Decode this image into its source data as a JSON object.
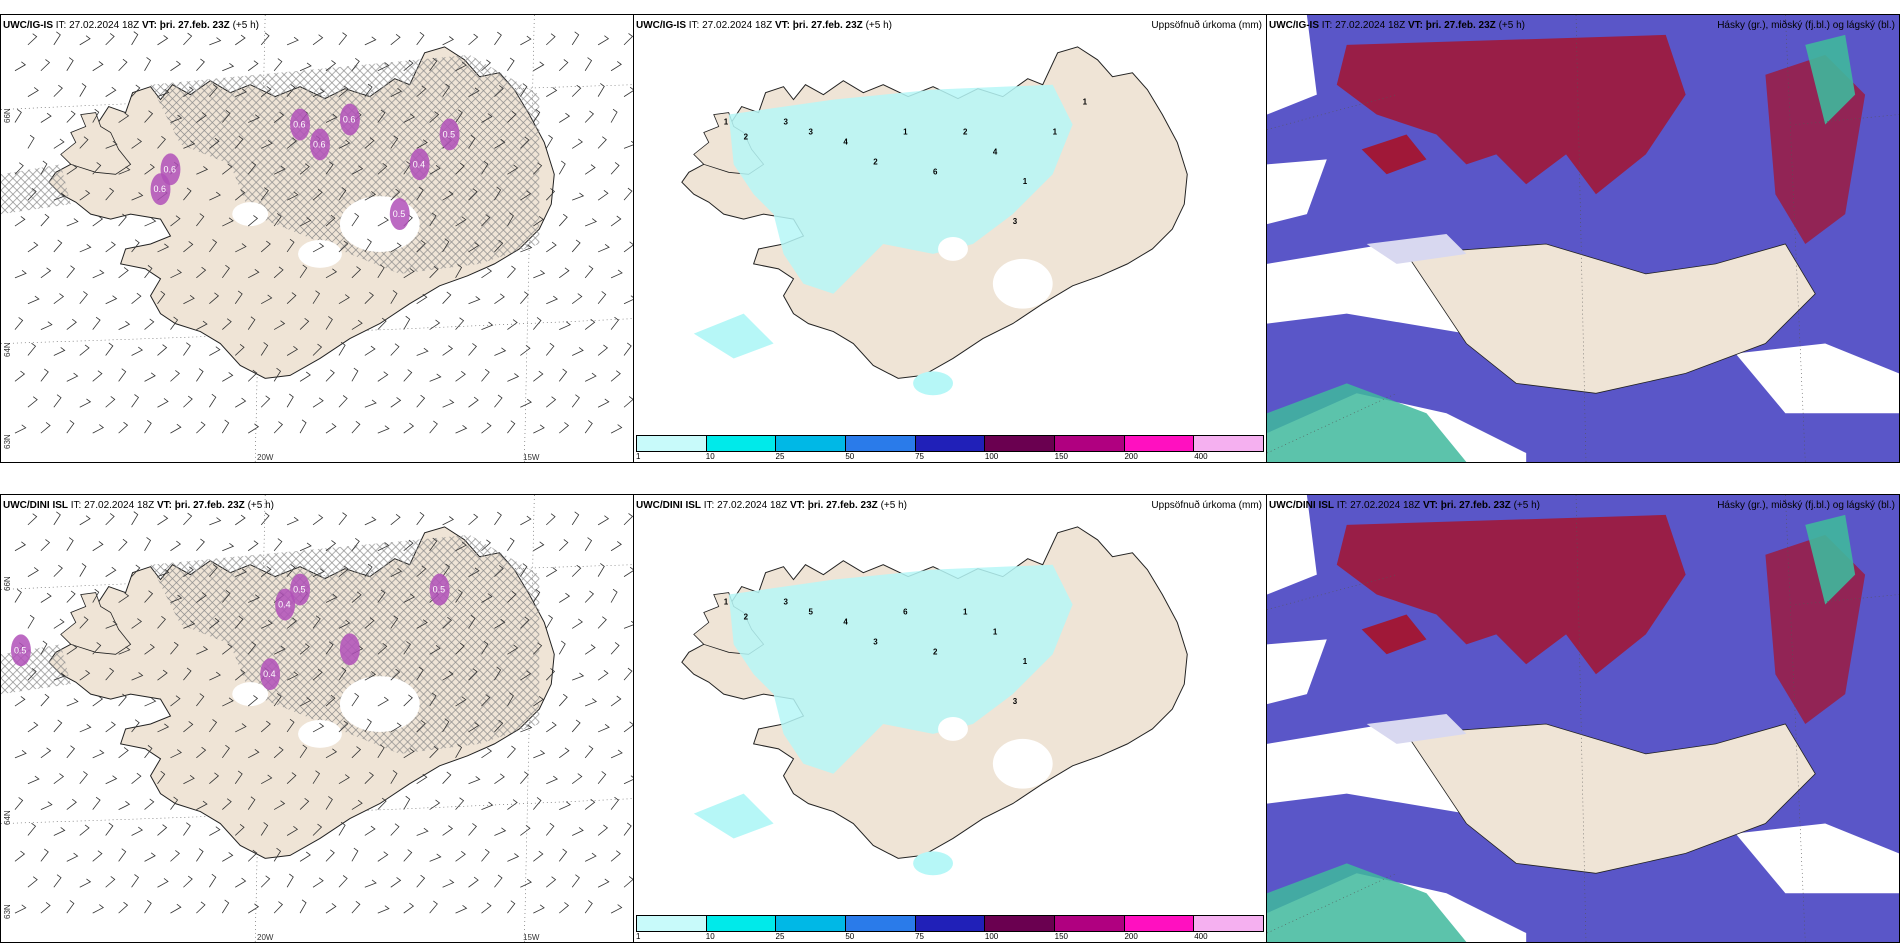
{
  "colors": {
    "land": "#efe4d6",
    "hatch": "#8a8a8a",
    "precip_light": "#b6f7f7",
    "ice": "#b050b8",
    "high_cloud": "#a01838",
    "mid_cloud": "#5a56c8",
    "low_cloud": "#d8d8f0",
    "green_cloud": "#3fb89c"
  },
  "rows": [
    {
      "model": "UWC/IG-IS",
      "it_label": "IT: 27.02.2024 18Z",
      "vt_label": "VT: þri. 27.feb. 23Z",
      "lead": "(+5 h)"
    },
    {
      "model": "UWC/DINI ISL",
      "it_label": "IT: 27.02.2024 18Z",
      "vt_label": "VT: þri. 27.feb. 23Z",
      "lead": "(+5 h)"
    }
  ],
  "precip_title": "Uppsöfnuð úrkoma (mm)",
  "cloud_title": "Hásky (gr.), miðský (fj.bl.) og lágský (bl.)",
  "axis": {
    "lon_w20": "20W",
    "lon_w15": "15W",
    "lat_66": "66N",
    "lat_64": "64N",
    "lat_63": "63N"
  },
  "colorbar": {
    "colors": [
      "#c8fafa",
      "#00eaea",
      "#00b8e6",
      "#2a7bea",
      "#2020b8",
      "#6a0050",
      "#b00080",
      "#ff10c0",
      "#f5b0f0"
    ],
    "ticks": [
      "1",
      "10",
      "25",
      "50",
      "75",
      "100",
      "150",
      "200",
      "400"
    ]
  },
  "ice_labels_row1": [
    "0.6",
    "0.6",
    "0.6",
    "0.6",
    "0.6",
    "0.5",
    "0.5",
    "0.4"
  ],
  "ice_labels_row2": [
    "0.5",
    "0.5",
    "0.4",
    "0.5",
    "0.4"
  ],
  "precip_labels_row1": [
    "1",
    "2",
    "3",
    "3",
    "4",
    "2",
    "1",
    "6",
    "2",
    "4",
    "3",
    "1",
    "1",
    "1"
  ],
  "precip_labels_row2": [
    "1",
    "2",
    "3",
    "5",
    "4",
    "3",
    "6",
    "2",
    "1",
    "1",
    "3",
    "1"
  ]
}
